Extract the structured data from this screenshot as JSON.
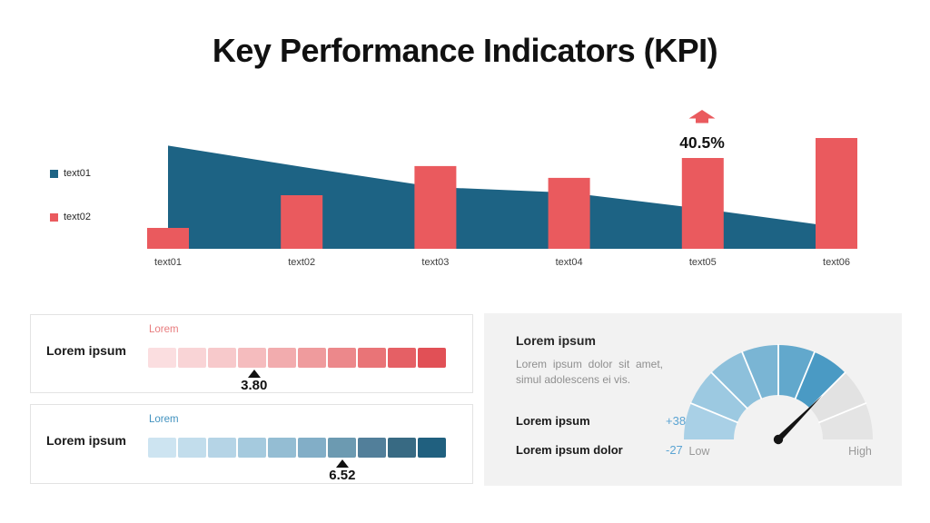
{
  "title": "Key Performance Indicators (KPI)",
  "chart_data": [
    {
      "type": "combo-area-bar",
      "categories": [
        "text01",
        "text02",
        "text03",
        "text04",
        "text05",
        "text06"
      ],
      "series": [
        {
          "name": "text01",
          "type": "area",
          "color": "#1d6384",
          "values": [
            46,
            36.5,
            27.5,
            25,
            17.8,
            9.7
          ]
        },
        {
          "name": "text02",
          "type": "bar",
          "color": "#ea5a5e",
          "values": [
            9.3,
            23.9,
            36.9,
            31.6,
            40.5,
            49.4
          ]
        }
      ],
      "annotation": {
        "category": "text05",
        "label": "40.5%",
        "icon": "up-arrow",
        "color": "#ea5a5e"
      },
      "legend": [
        {
          "label": "text01",
          "color": "#1d6384"
        },
        {
          "label": "text02",
          "color": "#ea5a5e"
        }
      ],
      "title": "",
      "xlabel": "",
      "ylabel": "",
      "ylim": [
        0,
        55
      ],
      "grid": false,
      "legend_position": "left"
    },
    {
      "type": "linear-gauge",
      "title": "Lorem ipsum",
      "scale_label": "Lorem",
      "scale_label_color": "#e87c7e",
      "value": "3.80",
      "position_pct": 35.6,
      "colors": [
        "#fbdee0",
        "#f9d4d6",
        "#f7c9cb",
        "#f5bcbe",
        "#f2acae",
        "#ef9b9d",
        "#ec888b",
        "#e97477",
        "#e56065",
        "#e15056"
      ]
    },
    {
      "type": "linear-gauge",
      "title": "Lorem ipsum",
      "scale_label": "Lorem",
      "scale_label_color": "#4292bf",
      "value": "6.52",
      "position_pct": 65.2,
      "colors": [
        "#cde4f1",
        "#c2ddec",
        "#b5d4e6",
        "#a5cade",
        "#94bdd3",
        "#82aec7",
        "#6c9ab1",
        "#527f9a",
        "#386a83",
        "#20607f"
      ]
    },
    {
      "type": "radial-gauge",
      "title": "Lorem ipsum",
      "description": "Lorem ipsum dolor sit amet, simul adolescens ei vis.",
      "stats": [
        {
          "label": "Lorem ipsum",
          "value": "+38"
        },
        {
          "label": "Lorem ipsum dolor",
          "value": "-27"
        }
      ],
      "stat_value_color": "#5ba4d3",
      "segments": [
        "#a9d0e6",
        "#9cc9e1",
        "#8dc0db",
        "#7ab5d4",
        "#62a8cc",
        "#4a9ac4",
        "#e2e2e2",
        "#e4e4e4"
      ],
      "low_label": "Low",
      "high_label": "High",
      "needle_angle_deg": 45,
      "needle_color": "#141414"
    }
  ]
}
